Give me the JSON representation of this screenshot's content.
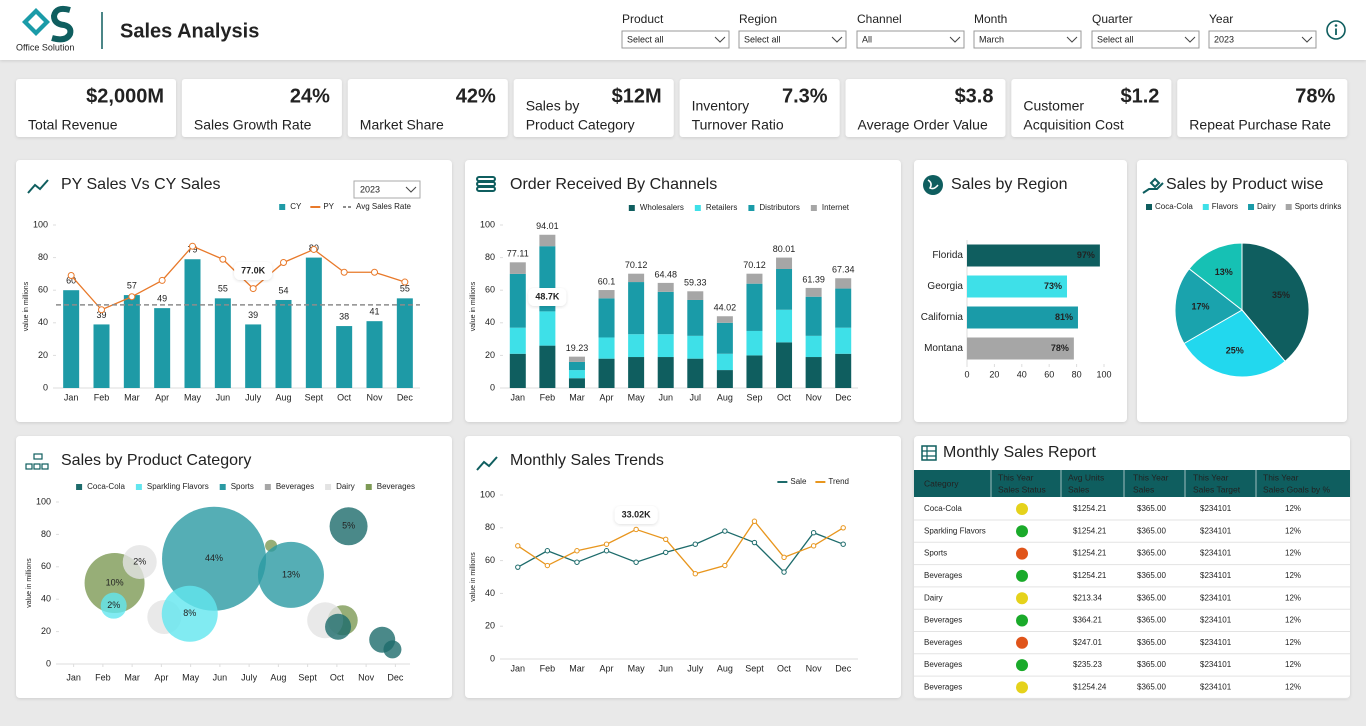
{
  "header": {
    "logo_text": "Office Solution",
    "title": "Sales Analysis"
  },
  "filters": [
    {
      "label": "Product",
      "value": "Select all"
    },
    {
      "label": "Region",
      "value": "Select all"
    },
    {
      "label": "Channel",
      "value": "All"
    },
    {
      "label": "Month",
      "value": "March"
    },
    {
      "label": "Quarter",
      "value": "Select all"
    },
    {
      "label": "Year",
      "value": "2023"
    }
  ],
  "kpis": [
    {
      "value": "$2,000M",
      "label": [
        "Total Revenue"
      ]
    },
    {
      "value": "24%",
      "label": [
        "Sales Growth Rate"
      ]
    },
    {
      "value": "42%",
      "label": [
        "Market Share"
      ]
    },
    {
      "value": "$12M",
      "label": [
        "Sales by",
        "Product Category"
      ]
    },
    {
      "value": "7.3%",
      "label": [
        "Inventory",
        "Turnover Ratio"
      ]
    },
    {
      "value": "$3.8",
      "label": [
        "Average Order Value"
      ]
    },
    {
      "value": "$1.2",
      "label": [
        "Customer",
        "Acquisition Cost"
      ]
    },
    {
      "value": "78%",
      "label": [
        "Repeat Purchase Rate"
      ]
    }
  ],
  "chart_data": [
    {
      "type": "combo",
      "title": "PY Sales Vs CY Sales",
      "dropdown": "2023",
      "y_label": "value in millions",
      "annotation": "77.0K",
      "categories": [
        "Jan",
        "Feb",
        "Mar",
        "Apr",
        "May",
        "Jun",
        "July",
        "Aug",
        "Sept",
        "Oct",
        "Nov",
        "Dec"
      ],
      "series": [
        {
          "name": "CY",
          "kind": "bar",
          "color": "#1e9aa6",
          "values": [
            60,
            39,
            57,
            49,
            79,
            55,
            39,
            54,
            80,
            38,
            41,
            55
          ]
        },
        {
          "name": "PY",
          "kind": "line",
          "color": "#e8792a",
          "values": [
            69,
            48,
            56,
            66,
            87,
            79,
            61,
            77,
            85,
            71,
            71,
            65
          ]
        },
        {
          "name": "Avg Sales Rate",
          "kind": "reference",
          "color": "#8c8c8c",
          "value": 51
        }
      ],
      "ylim": [
        0,
        100
      ],
      "yticks": [
        0,
        20,
        40,
        60,
        80,
        100
      ]
    },
    {
      "type": "stacked_bar",
      "title": "Order Received By Channels",
      "y_label": "value in millions",
      "annotation": "48.7K",
      "categories": [
        "Jan",
        "Feb",
        "Mar",
        "Apr",
        "May",
        "Jun",
        "Jul",
        "Aug",
        "Sep",
        "Oct",
        "Nov",
        "Dec"
      ],
      "series": [
        {
          "name": "Wholesalers",
          "color": "#0f5e5f",
          "values": [
            21,
            26,
            6,
            18,
            19,
            19,
            18,
            11,
            20,
            28,
            19,
            21
          ]
        },
        {
          "name": "Retailers",
          "color": "#3ee0e8",
          "values": [
            16,
            21,
            5,
            13,
            14,
            14,
            14,
            10,
            15,
            20,
            13,
            16
          ]
        },
        {
          "name": "Distributors",
          "color": "#1a9ba8",
          "values": [
            33,
            40,
            5,
            24,
            32,
            26,
            22,
            19,
            29,
            25,
            24,
            24
          ]
        },
        {
          "name": "Internet",
          "color": "#a6a6a6",
          "values": [
            7.11,
            7.01,
            3.23,
            5.1,
            5.12,
            5.48,
            5.33,
            4.02,
            6.12,
            7.01,
            5.39,
            6.34
          ]
        }
      ],
      "totals": [
        77.11,
        94.01,
        19.23,
        60.1,
        70.12,
        64.48,
        59.33,
        44.02,
        70.12,
        80.01,
        61.39,
        67.34
      ],
      "ylim": [
        0,
        100
      ],
      "yticks": [
        0,
        20,
        40,
        60,
        80,
        100
      ]
    },
    {
      "type": "hbar",
      "title": "Sales by Region",
      "categories": [
        "Florida",
        "Georgia",
        "California",
        "Montana"
      ],
      "values": [
        97,
        73,
        81,
        78
      ],
      "value_labels": [
        "97%",
        "73%",
        "81%",
        "78%"
      ],
      "colors": [
        "#0f5e5f",
        "#3ee0e8",
        "#1a9ba8",
        "#a6a6a6"
      ],
      "xlim": [
        0,
        100
      ],
      "xticks": [
        0,
        20,
        40,
        60,
        80,
        100
      ]
    },
    {
      "type": "pie",
      "title": "Sales by Product wise",
      "legend": [
        {
          "name": "Coca-Cola",
          "color": "#0f5e5f"
        },
        {
          "name": "Flavors",
          "color": "#3ee0e8"
        },
        {
          "name": "Dairy",
          "color": "#1a9ba8"
        },
        {
          "name": "Sports drinks",
          "color": "#a6a6a6"
        }
      ],
      "values": [
        35,
        25,
        17,
        13
      ],
      "value_labels": [
        "35%",
        "25%",
        "17%",
        "13%"
      ],
      "colors": [
        "#0f5e5f",
        "#22d8ee",
        "#1aa3ad",
        "#16c1b4"
      ]
    },
    {
      "type": "bubble",
      "title": "Sales by Product Category",
      "y_label": "value in millions",
      "series": [
        {
          "name": "Coca-Cola",
          "color": "#1d6b6b",
          "x": [
            10.4,
            10.04,
            11.55,
            11.9
          ],
          "y": [
            85,
            23,
            15,
            9
          ],
          "sizes": [
            19,
            13,
            13,
            9
          ],
          "bubble_labels": [
            "5%",
            null,
            null,
            null
          ]
        },
        {
          "name": "Sparkling Flavors",
          "color": "#62e6ef",
          "x": [
            2.37,
            4.97
          ],
          "y": [
            36,
            31
          ],
          "sizes": [
            13,
            28
          ],
          "bubble_labels": [
            "2%",
            "8%"
          ]
        },
        {
          "name": "Sports",
          "color": "#2a9aa3",
          "x": [
            5.8,
            8.43
          ],
          "y": [
            65,
            55
          ],
          "sizes": [
            52,
            33
          ],
          "bubble_labels": [
            "44%",
            "13%"
          ]
        },
        {
          "name": "Beverages",
          "color": "#a6a6a6",
          "x": [],
          "y": [],
          "sizes": [],
          "bubble_labels": []
        },
        {
          "name": "Dairy",
          "color": "#e3e3e3",
          "x": [
            3.26,
            4.1,
            9.6
          ],
          "y": [
            63,
            29,
            27
          ],
          "sizes": [
            17,
            17,
            18
          ],
          "bubble_labels": [
            "2%",
            null,
            null
          ]
        },
        {
          "name": "Beverages",
          "color": "#7d9a55",
          "x": [
            2.4,
            7.75,
            10.2
          ],
          "y": [
            50,
            73,
            27
          ],
          "sizes": [
            30,
            6,
            15
          ],
          "bubble_labels": [
            "10%",
            null,
            null
          ]
        }
      ],
      "xlim": [
        0.5,
        12.5
      ],
      "xticks": [
        {
          "value": 1,
          "label": "Jan"
        },
        {
          "value": 2,
          "label": "Feb"
        },
        {
          "value": 3,
          "label": "Mar"
        },
        {
          "value": 4,
          "label": "Apr"
        },
        {
          "value": 5,
          "label": "May"
        },
        {
          "value": 6,
          "label": "Jun"
        },
        {
          "value": 7,
          "label": "July"
        },
        {
          "value": 8,
          "label": "Aug"
        },
        {
          "value": 9,
          "label": "Sept"
        },
        {
          "value": 10,
          "label": "Oct"
        },
        {
          "value": 11,
          "label": "Nov"
        },
        {
          "value": 12,
          "label": "Dec"
        }
      ],
      "ylim": [
        0,
        100
      ],
      "yticks": [
        0,
        20,
        40,
        60,
        80,
        100
      ]
    },
    {
      "type": "line",
      "title": "Monthly Sales Trends",
      "y_label": "value in millions",
      "annotation": "33.02K",
      "categories": [
        "Jan",
        "Feb",
        "Mar",
        "Apr",
        "May",
        "Jun",
        "July",
        "Aug",
        "Sept",
        "Oct",
        "Nov",
        "Dec"
      ],
      "series": [
        {
          "name": "Sale",
          "color": "#1d6b6b",
          "values": [
            56,
            66,
            59,
            66,
            59,
            65,
            70,
            78,
            71,
            53,
            77,
            70
          ]
        },
        {
          "name": "Trend",
          "color": "#e8961e",
          "values": [
            69,
            57,
            66,
            70,
            79,
            73,
            52,
            57,
            84,
            62,
            69,
            80
          ]
        }
      ],
      "ylim": [
        0,
        100
      ],
      "yticks": [
        0,
        20,
        40,
        60,
        80,
        100
      ]
    }
  ],
  "table": {
    "title": "Monthly Sales Report",
    "columns": [
      [
        "Category"
      ],
      [
        "This Year",
        "Sales Status"
      ],
      [
        "Avg Units",
        "Sales"
      ],
      [
        "This Year",
        "Sales"
      ],
      [
        "This Year",
        "Sales Target"
      ],
      [
        "This Year",
        "Sales Goals by %"
      ]
    ],
    "rows": [
      [
        "Coca-Cola",
        "$1254.21",
        "$365.00",
        "$234101",
        "12%"
      ],
      [
        "Sparkling Flavors",
        "$1254.21",
        "$365.00",
        "$234101",
        "12%"
      ],
      [
        "Sports",
        "$1254.21",
        "$365.00",
        "$234101",
        "12%"
      ],
      [
        "Beverages",
        "$1254.21",
        "$365.00",
        "$234101",
        "12%"
      ],
      [
        "Dairy",
        "$213.34",
        "$365.00",
        "$234101",
        "12%"
      ],
      [
        "Beverages",
        "$364.21",
        "$365.00",
        "$234101",
        "12%"
      ],
      [
        "Beverages",
        "$247.01",
        "$365.00",
        "$234101",
        "12%"
      ],
      [
        "Beverages",
        "$235.23",
        "$365.00",
        "$234101",
        "12%"
      ],
      [
        "Beverages",
        "$1254.24",
        "$365.00",
        "$234101",
        "12%"
      ]
    ],
    "status_colors": [
      "#e5d21b",
      "#1aaa2a",
      "#e0541a",
      "#1aaa2a",
      "#e5d21b",
      "#1aaa2a",
      "#e0541a",
      "#1aaa2a",
      "#e5d21b"
    ]
  }
}
